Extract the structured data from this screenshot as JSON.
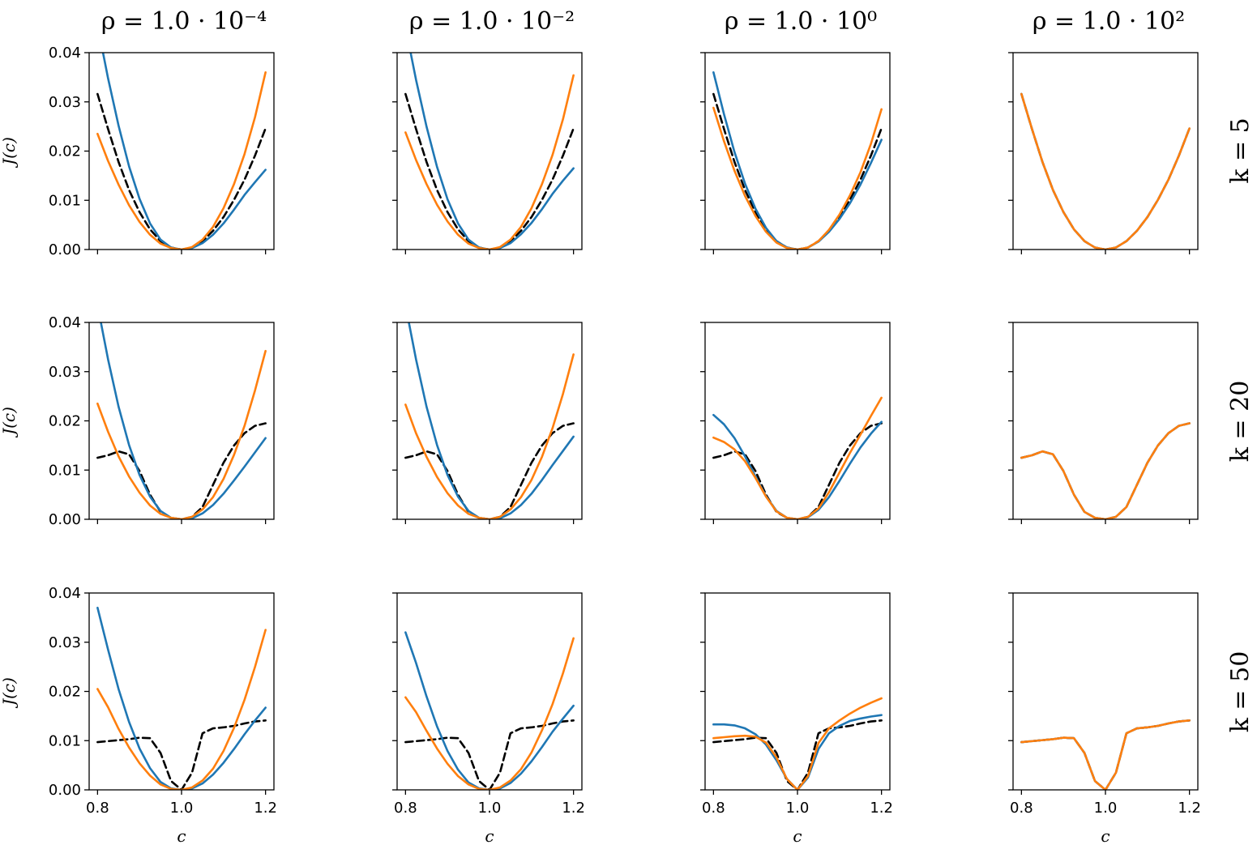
{
  "figure": {
    "column_titles": [
      "ρ = 1.0 · 10⁻⁴",
      "ρ = 1.0 · 10⁻²",
      "ρ = 1.0 · 10⁰",
      "ρ = 1.0 · 10²"
    ],
    "row_titles": [
      "k = 5",
      "k = 20",
      "k = 50"
    ],
    "colors": {
      "blue": "#1f77b4",
      "orange": "#ff7f0e",
      "black": "#000000"
    }
  },
  "chart_data": {
    "type": "line",
    "xlabel": "c",
    "ylabel": "J(c)",
    "xlim": [
      0.78,
      1.22
    ],
    "ylim": [
      0.0,
      0.04
    ],
    "x_ticks": [
      "0.8",
      "1.0",
      "1.2"
    ],
    "y_ticks": [
      "0.00",
      "0.01",
      "0.02",
      "0.03",
      "0.04"
    ],
    "x": [
      0.8,
      0.825,
      0.85,
      0.875,
      0.9,
      0.925,
      0.95,
      0.975,
      1.0,
      1.025,
      1.05,
      1.075,
      1.1,
      1.125,
      1.15,
      1.175,
      1.2
    ],
    "panels": [
      {
        "row": 0,
        "col": 0,
        "series": [
          {
            "color": "black",
            "dash": true,
            "values": [
              0.0316,
              0.0245,
              0.0178,
              0.0121,
              0.0076,
              0.0041,
              0.0017,
              0.0004,
              0.0,
              0.0004,
              0.0017,
              0.0038,
              0.0066,
              0.0101,
              0.0142,
              0.0191,
              0.0246
            ]
          },
          {
            "color": "blue",
            "dash": false,
            "values": [
              0.0456,
              0.0348,
              0.0252,
              0.0169,
              0.0103,
              0.0053,
              0.002,
              0.0004,
              0.0,
              0.0003,
              0.0013,
              0.003,
              0.0053,
              0.0081,
              0.0111,
              0.0137,
              0.0162
            ]
          },
          {
            "color": "orange",
            "dash": false,
            "values": [
              0.0235,
              0.018,
              0.0132,
              0.009,
              0.0056,
              0.003,
              0.0012,
              0.0003,
              0.0,
              0.0005,
              0.002,
              0.0046,
              0.0084,
              0.0133,
              0.0194,
              0.0269,
              0.036
            ]
          }
        ]
      },
      {
        "row": 0,
        "col": 1,
        "series": [
          {
            "color": "black",
            "dash": true,
            "values": [
              0.0316,
              0.0245,
              0.0178,
              0.0121,
              0.0076,
              0.0041,
              0.0017,
              0.0004,
              0.0,
              0.0004,
              0.0017,
              0.0038,
              0.0066,
              0.0101,
              0.0142,
              0.0191,
              0.0246
            ]
          },
          {
            "color": "blue",
            "dash": false,
            "values": [
              0.0452,
              0.0345,
              0.025,
              0.0168,
              0.0102,
              0.0053,
              0.002,
              0.0004,
              0.0,
              0.0003,
              0.0013,
              0.0031,
              0.0054,
              0.0082,
              0.0113,
              0.014,
              0.0165
            ]
          },
          {
            "color": "orange",
            "dash": false,
            "values": [
              0.0238,
              0.0182,
              0.0133,
              0.0091,
              0.0057,
              0.003,
              0.0012,
              0.0003,
              0.0,
              0.0005,
              0.002,
              0.0046,
              0.0084,
              0.0133,
              0.0192,
              0.0265,
              0.0354
            ]
          }
        ]
      },
      {
        "row": 0,
        "col": 2,
        "series": [
          {
            "color": "black",
            "dash": true,
            "values": [
              0.0316,
              0.0245,
              0.0178,
              0.0121,
              0.0076,
              0.0041,
              0.0017,
              0.0004,
              0.0,
              0.0004,
              0.0017,
              0.0038,
              0.0066,
              0.0101,
              0.0142,
              0.0191,
              0.0246
            ]
          },
          {
            "color": "blue",
            "dash": false,
            "values": [
              0.036,
              0.0275,
              0.0198,
              0.0134,
              0.0083,
              0.0044,
              0.0017,
              0.0004,
              0.0,
              0.0004,
              0.0016,
              0.0036,
              0.0062,
              0.0094,
              0.0132,
              0.0176,
              0.0223
            ]
          },
          {
            "color": "orange",
            "dash": false,
            "values": [
              0.0288,
              0.022,
              0.016,
              0.0109,
              0.0068,
              0.0036,
              0.0014,
              0.0003,
              0.0,
              0.0004,
              0.0017,
              0.004,
              0.0071,
              0.011,
              0.0157,
              0.0215,
              0.0285
            ]
          }
        ]
      },
      {
        "row": 0,
        "col": 3,
        "series": [
          {
            "color": "black",
            "dash": true,
            "values": [
              0.0316,
              0.0245,
              0.0178,
              0.0121,
              0.0076,
              0.0041,
              0.0017,
              0.0004,
              0.0,
              0.0004,
              0.0017,
              0.0038,
              0.0066,
              0.0101,
              0.0142,
              0.0191,
              0.0246
            ]
          },
          {
            "color": "blue",
            "dash": false,
            "values": [
              0.0316,
              0.0245,
              0.0178,
              0.0121,
              0.0076,
              0.0041,
              0.0017,
              0.0004,
              0.0,
              0.0004,
              0.0017,
              0.0038,
              0.0066,
              0.0101,
              0.0142,
              0.0191,
              0.0246
            ]
          },
          {
            "color": "orange",
            "dash": false,
            "values": [
              0.0316,
              0.0245,
              0.0178,
              0.0121,
              0.0076,
              0.0041,
              0.0017,
              0.0004,
              0.0,
              0.0004,
              0.0017,
              0.0038,
              0.0066,
              0.0101,
              0.0142,
              0.0191,
              0.0246
            ]
          }
        ]
      },
      {
        "row": 1,
        "col": 0,
        "series": [
          {
            "color": "black",
            "dash": true,
            "values": [
              0.0125,
              0.013,
              0.0138,
              0.0132,
              0.0098,
              0.005,
              0.0015,
              0.0003,
              0.0,
              0.0005,
              0.0025,
              0.007,
              0.0115,
              0.015,
              0.0175,
              0.019,
              0.0195
            ]
          },
          {
            "color": "blue",
            "dash": false,
            "values": [
              0.0435,
              0.0325,
              0.0229,
              0.0151,
              0.009,
              0.0046,
              0.0017,
              0.0003,
              0.0,
              0.0002,
              0.0012,
              0.0029,
              0.0052,
              0.0079,
              0.0107,
              0.0136,
              0.0165
            ]
          },
          {
            "color": "orange",
            "dash": false,
            "values": [
              0.0235,
              0.0178,
              0.0128,
              0.0087,
              0.0054,
              0.0028,
              0.0011,
              0.0003,
              0.0,
              0.0005,
              0.002,
              0.0045,
              0.0082,
              0.0131,
              0.019,
              0.0262,
              0.0342
            ]
          }
        ]
      },
      {
        "row": 1,
        "col": 1,
        "series": [
          {
            "color": "black",
            "dash": true,
            "values": [
              0.0125,
              0.013,
              0.0138,
              0.0132,
              0.0098,
              0.005,
              0.0015,
              0.0003,
              0.0,
              0.0005,
              0.0025,
              0.007,
              0.0115,
              0.015,
              0.0175,
              0.019,
              0.0195
            ]
          },
          {
            "color": "blue",
            "dash": false,
            "values": [
              0.0435,
              0.0325,
              0.0229,
              0.0151,
              0.009,
              0.0046,
              0.0017,
              0.0003,
              0.0,
              0.0002,
              0.0012,
              0.0029,
              0.0052,
              0.008,
              0.011,
              0.0139,
              0.0168
            ]
          },
          {
            "color": "orange",
            "dash": false,
            "values": [
              0.0233,
              0.0175,
              0.0127,
              0.0086,
              0.0053,
              0.0028,
              0.0011,
              0.0003,
              0.0,
              0.0005,
              0.002,
              0.0045,
              0.008,
              0.0127,
              0.0185,
              0.0255,
              0.0335
            ]
          }
        ]
      },
      {
        "row": 1,
        "col": 2,
        "series": [
          {
            "color": "black",
            "dash": true,
            "values": [
              0.0125,
              0.013,
              0.0138,
              0.0132,
              0.0098,
              0.005,
              0.0015,
              0.0003,
              0.0,
              0.0005,
              0.0025,
              0.007,
              0.0115,
              0.015,
              0.0175,
              0.019,
              0.0195
            ]
          },
          {
            "color": "blue",
            "dash": false,
            "values": [
              0.0212,
              0.0193,
              0.0165,
              0.0128,
              0.0087,
              0.0047,
              0.0017,
              0.0003,
              0.0,
              0.0004,
              0.0019,
              0.0045,
              0.0078,
              0.0113,
              0.0146,
              0.0174,
              0.0198
            ]
          },
          {
            "color": "orange",
            "dash": false,
            "values": [
              0.0166,
              0.0157,
              0.0142,
              0.0118,
              0.0084,
              0.0046,
              0.0016,
              0.0003,
              0.0,
              0.0005,
              0.0022,
              0.0055,
              0.0095,
              0.0135,
              0.0172,
              0.021,
              0.0247
            ]
          }
        ]
      },
      {
        "row": 1,
        "col": 3,
        "series": [
          {
            "color": "black",
            "dash": true,
            "values": [
              0.0125,
              0.013,
              0.0138,
              0.0132,
              0.0098,
              0.005,
              0.0015,
              0.0003,
              0.0,
              0.0005,
              0.0025,
              0.007,
              0.0115,
              0.015,
              0.0175,
              0.019,
              0.0195
            ]
          },
          {
            "color": "blue",
            "dash": false,
            "values": [
              0.0125,
              0.013,
              0.0138,
              0.0132,
              0.0098,
              0.005,
              0.0015,
              0.0003,
              0.0,
              0.0005,
              0.0025,
              0.007,
              0.0115,
              0.015,
              0.0175,
              0.019,
              0.0195
            ]
          },
          {
            "color": "orange",
            "dash": false,
            "values": [
              0.0125,
              0.013,
              0.0138,
              0.0132,
              0.0098,
              0.005,
              0.0015,
              0.0003,
              0.0,
              0.0005,
              0.0025,
              0.007,
              0.0115,
              0.015,
              0.0175,
              0.019,
              0.0195
            ]
          }
        ]
      },
      {
        "row": 2,
        "col": 0,
        "series": [
          {
            "color": "black",
            "dash": true,
            "values": [
              0.0097,
              0.0099,
              0.0101,
              0.0103,
              0.0106,
              0.0105,
              0.0075,
              0.0018,
              0.0,
              0.0035,
              0.0115,
              0.0125,
              0.0127,
              0.013,
              0.0135,
              0.0139,
              0.0141
            ]
          },
          {
            "color": "blue",
            "dash": false,
            "values": [
              0.037,
              0.0285,
              0.0205,
              0.0138,
              0.0084,
              0.0044,
              0.0016,
              0.0003,
              0.0,
              0.0003,
              0.0013,
              0.0031,
              0.0055,
              0.0083,
              0.0113,
              0.0141,
              0.0167
            ]
          },
          {
            "color": "orange",
            "dash": false,
            "values": [
              0.0205,
              0.0168,
              0.0124,
              0.0086,
              0.0054,
              0.0029,
              0.0011,
              0.0002,
              0.0,
              0.0005,
              0.0019,
              0.0043,
              0.0079,
              0.0126,
              0.0183,
              0.025,
              0.0325
            ]
          }
        ]
      },
      {
        "row": 2,
        "col": 1,
        "series": [
          {
            "color": "black",
            "dash": true,
            "values": [
              0.0097,
              0.0099,
              0.0101,
              0.0103,
              0.0106,
              0.0105,
              0.0075,
              0.0018,
              0.0,
              0.0035,
              0.0115,
              0.0125,
              0.0127,
              0.013,
              0.0135,
              0.0139,
              0.0141
            ]
          },
          {
            "color": "blue",
            "dash": false,
            "values": [
              0.032,
              0.0258,
              0.019,
              0.0129,
              0.0079,
              0.0041,
              0.0015,
              0.0003,
              0.0,
              0.0003,
              0.0014,
              0.0033,
              0.0058,
              0.0087,
              0.0118,
              0.0145,
              0.0171
            ]
          },
          {
            "color": "orange",
            "dash": false,
            "values": [
              0.0188,
              0.0158,
              0.012,
              0.0084,
              0.0053,
              0.0028,
              0.0011,
              0.0002,
              0.0,
              0.0005,
              0.0019,
              0.0042,
              0.0076,
              0.0121,
              0.0174,
              0.0237,
              0.0308
            ]
          }
        ]
      },
      {
        "row": 2,
        "col": 2,
        "series": [
          {
            "color": "black",
            "dash": true,
            "values": [
              0.0097,
              0.0099,
              0.0101,
              0.0103,
              0.0106,
              0.0105,
              0.0075,
              0.0018,
              0.0,
              0.0035,
              0.0115,
              0.0125,
              0.0127,
              0.013,
              0.0135,
              0.0139,
              0.0141
            ]
          },
          {
            "color": "blue",
            "dash": false,
            "values": [
              0.0133,
              0.0133,
              0.0131,
              0.0125,
              0.0113,
              0.0092,
              0.006,
              0.0022,
              0.0,
              0.0025,
              0.0083,
              0.0115,
              0.013,
              0.014,
              0.0145,
              0.0149,
              0.0152
            ]
          },
          {
            "color": "orange",
            "dash": false,
            "values": [
              0.0105,
              0.0107,
              0.0109,
              0.011,
              0.0108,
              0.0096,
              0.0066,
              0.0022,
              0.0,
              0.0028,
              0.0095,
              0.0125,
              0.0141,
              0.0155,
              0.0167,
              0.0177,
              0.0186
            ]
          }
        ]
      },
      {
        "row": 2,
        "col": 3,
        "series": [
          {
            "color": "black",
            "dash": true,
            "values": [
              0.0097,
              0.0099,
              0.0101,
              0.0103,
              0.0106,
              0.0105,
              0.0075,
              0.0018,
              0.0,
              0.0035,
              0.0115,
              0.0125,
              0.0127,
              0.013,
              0.0135,
              0.0139,
              0.0141
            ]
          },
          {
            "color": "blue",
            "dash": false,
            "values": [
              0.0097,
              0.0099,
              0.0101,
              0.0103,
              0.0106,
              0.0105,
              0.0075,
              0.0018,
              0.0,
              0.0035,
              0.0115,
              0.0125,
              0.0127,
              0.013,
              0.0135,
              0.0139,
              0.0141
            ]
          },
          {
            "color": "orange",
            "dash": false,
            "values": [
              0.0097,
              0.0099,
              0.0101,
              0.0103,
              0.0106,
              0.0105,
              0.0075,
              0.0018,
              0.0,
              0.0035,
              0.0115,
              0.0125,
              0.0127,
              0.013,
              0.0135,
              0.0139,
              0.0141
            ]
          }
        ]
      }
    ]
  }
}
